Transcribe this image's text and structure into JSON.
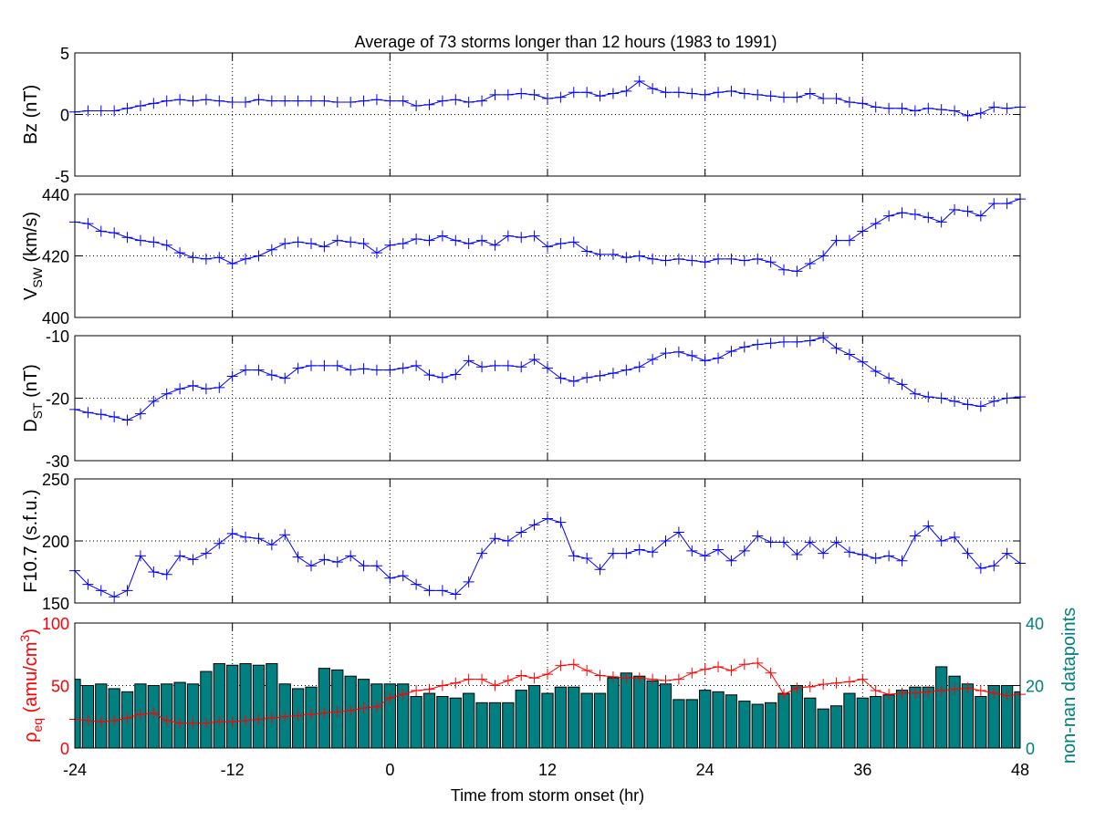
{
  "chart_data": [
    {
      "type": "line",
      "title": "Average of 73 storms longer than 12 hours (1983 to 1991)",
      "ylabel_parts": [
        {
          "text": "Bz (nT)"
        }
      ],
      "x": [
        -24,
        -23,
        -22,
        -21,
        -20,
        -19,
        -18,
        -17,
        -16,
        -15,
        -14,
        -13,
        -12,
        -11,
        -10,
        -9,
        -8,
        -7,
        -6,
        -5,
        -4,
        -3,
        -2,
        -1,
        0,
        1,
        2,
        3,
        4,
        5,
        6,
        7,
        8,
        9,
        10,
        11,
        12,
        13,
        14,
        15,
        16,
        17,
        18,
        19,
        20,
        21,
        22,
        23,
        24,
        25,
        26,
        27,
        28,
        29,
        30,
        31,
        32,
        33,
        34,
        35,
        36,
        37,
        38,
        39,
        40,
        41,
        42,
        43,
        44,
        45,
        46,
        47,
        48
      ],
      "series": [
        {
          "color": "#0000ff",
          "values": [
            0.2,
            0.3,
            0.3,
            0.3,
            0.5,
            0.7,
            0.9,
            1.1,
            1.2,
            1.1,
            1.2,
            1.1,
            1.0,
            1.0,
            1.2,
            1.1,
            1.1,
            1.1,
            1.1,
            1.1,
            1.0,
            1.0,
            1.1,
            1.2,
            1.1,
            1.1,
            0.7,
            0.8,
            1.1,
            1.2,
            1.0,
            1.1,
            1.6,
            1.6,
            1.7,
            1.6,
            1.3,
            1.4,
            1.8,
            1.8,
            1.5,
            1.7,
            1.9,
            2.7,
            2.1,
            1.8,
            1.8,
            1.7,
            1.6,
            1.8,
            1.9,
            1.7,
            1.6,
            1.5,
            1.4,
            1.4,
            1.7,
            1.3,
            1.3,
            1.0,
            0.9,
            0.6,
            0.5,
            0.5,
            0.3,
            0.5,
            0.4,
            0.3,
            -0.1,
            0.1,
            0.6,
            0.5,
            0.6
          ]
        }
      ],
      "xlim": [
        -24,
        48
      ],
      "xticks": [
        -24,
        -12,
        0,
        12,
        24,
        36,
        48
      ],
      "show_xtick_labels": false,
      "ylim": [
        -5,
        5
      ],
      "yticks": [
        -5,
        0,
        5
      ],
      "grid": true
    },
    {
      "type": "line",
      "ylabel_parts": [
        {
          "text": "V"
        },
        {
          "text": "SW",
          "sub": true
        },
        {
          "text": " (km/s)"
        }
      ],
      "x": [
        -24,
        -23,
        -22,
        -21,
        -20,
        -19,
        -18,
        -17,
        -16,
        -15,
        -14,
        -13,
        -12,
        -11,
        -10,
        -9,
        -8,
        -7,
        -6,
        -5,
        -4,
        -3,
        -2,
        -1,
        0,
        1,
        2,
        3,
        4,
        5,
        6,
        7,
        8,
        9,
        10,
        11,
        12,
        13,
        14,
        15,
        16,
        17,
        18,
        19,
        20,
        21,
        22,
        23,
        24,
        25,
        26,
        27,
        28,
        29,
        30,
        31,
        32,
        33,
        34,
        35,
        36,
        37,
        38,
        39,
        40,
        41,
        42,
        43,
        44,
        45,
        46,
        47,
        48
      ],
      "series": [
        {
          "color": "#0000ff",
          "values": [
            431,
            430.5,
            428,
            427.5,
            426,
            425,
            424.5,
            423.5,
            421,
            419.5,
            419,
            419.5,
            417.5,
            419,
            420,
            422,
            424,
            424.5,
            424,
            423,
            425,
            424.5,
            424,
            421,
            423.5,
            424,
            425.5,
            425,
            426.5,
            425,
            424,
            425,
            423.5,
            426.5,
            426,
            426.5,
            423,
            424,
            424.5,
            421.5,
            420.5,
            420.5,
            419.5,
            420,
            419,
            418.5,
            419,
            418.5,
            418,
            419,
            419,
            418.5,
            419,
            418,
            415.5,
            415,
            417.5,
            420,
            425,
            425,
            428,
            430.5,
            433,
            434,
            433.5,
            432.5,
            431,
            435,
            434.5,
            433,
            437,
            437,
            438.5
          ]
        }
      ],
      "xlim": [
        -24,
        48
      ],
      "xticks": [
        -24,
        -12,
        0,
        12,
        24,
        36,
        48
      ],
      "show_xtick_labels": false,
      "ylim": [
        400,
        440
      ],
      "yticks": [
        400,
        420,
        440
      ],
      "grid": true
    },
    {
      "type": "line",
      "ylabel_parts": [
        {
          "text": "D"
        },
        {
          "text": "ST",
          "sub": true
        },
        {
          "text": " (nT)"
        }
      ],
      "x": [
        -24,
        -23,
        -22,
        -21,
        -20,
        -19,
        -18,
        -17,
        -16,
        -15,
        -14,
        -13,
        -12,
        -11,
        -10,
        -9,
        -8,
        -7,
        -6,
        -5,
        -4,
        -3,
        -2,
        -1,
        0,
        1,
        2,
        3,
        4,
        5,
        6,
        7,
        8,
        9,
        10,
        11,
        12,
        13,
        14,
        15,
        16,
        17,
        18,
        19,
        20,
        21,
        22,
        23,
        24,
        25,
        26,
        27,
        28,
        29,
        30,
        31,
        32,
        33,
        34,
        35,
        36,
        37,
        38,
        39,
        40,
        41,
        42,
        43,
        44,
        45,
        46,
        47,
        48
      ],
      "series": [
        {
          "color": "#0000ff",
          "values": [
            -21.8,
            -22.3,
            -22.6,
            -23.0,
            -23.5,
            -22.5,
            -20.5,
            -19.3,
            -18.5,
            -18.0,
            -18.5,
            -18.3,
            -16.5,
            -15.5,
            -15.5,
            -16.3,
            -16.8,
            -15.2,
            -14.8,
            -14.8,
            -14.8,
            -15.5,
            -15.3,
            -15.5,
            -15.5,
            -15.2,
            -14.8,
            -16.3,
            -16.7,
            -16.2,
            -14.0,
            -15.0,
            -14.8,
            -14.8,
            -15.0,
            -13.8,
            -15.2,
            -16.8,
            -17.3,
            -16.7,
            -16.4,
            -16.0,
            -15.5,
            -15.0,
            -13.8,
            -12.8,
            -12.6,
            -13.2,
            -14.0,
            -13.6,
            -12.5,
            -11.8,
            -11.4,
            -11.2,
            -11.0,
            -11.0,
            -10.8,
            -10.3,
            -12.0,
            -13.0,
            -14.2,
            -15.7,
            -16.8,
            -17.8,
            -19.3,
            -19.8,
            -20.0,
            -20.5,
            -21.0,
            -21.3,
            -20.5,
            -20.0,
            -19.8
          ]
        }
      ],
      "xlim": [
        -24,
        48
      ],
      "xticks": [
        -24,
        -12,
        0,
        12,
        24,
        36,
        48
      ],
      "show_xtick_labels": false,
      "ylim": [
        -30,
        -10
      ],
      "yticks": [
        -30,
        -20,
        -10
      ],
      "grid": true
    },
    {
      "type": "line",
      "ylabel_parts": [
        {
          "text": "F10.7 (s.f.u.)"
        }
      ],
      "x": [
        -24,
        -23,
        -22,
        -21,
        -20,
        -19,
        -18,
        -17,
        -16,
        -15,
        -14,
        -13,
        -12,
        -11,
        -10,
        -9,
        -8,
        -7,
        -6,
        -5,
        -4,
        -3,
        -2,
        -1,
        0,
        1,
        2,
        3,
        4,
        5,
        6,
        7,
        8,
        9,
        10,
        11,
        12,
        13,
        14,
        15,
        16,
        17,
        18,
        19,
        20,
        21,
        22,
        23,
        24,
        25,
        26,
        27,
        28,
        29,
        30,
        31,
        32,
        33,
        34,
        35,
        36,
        37,
        38,
        39,
        40,
        41,
        42,
        43,
        44,
        45,
        46,
        47,
        48
      ],
      "series": [
        {
          "color": "#0000ff",
          "values": [
            176,
            165,
            160,
            155,
            160,
            188,
            175,
            173,
            188,
            185,
            190,
            198,
            206,
            203,
            202,
            197,
            205,
            187,
            180,
            185,
            183,
            188,
            180,
            180,
            170,
            172,
            165,
            160,
            160,
            157,
            167,
            190,
            202,
            200,
            207,
            213,
            218,
            215,
            188,
            186,
            177,
            190,
            190,
            193,
            191,
            200,
            207,
            192,
            188,
            193,
            184,
            192,
            204,
            199,
            199,
            189,
            199,
            190,
            199,
            191,
            189,
            186,
            188,
            184,
            204,
            212,
            200,
            203,
            190,
            178,
            180,
            190,
            182
          ]
        }
      ],
      "xlim": [
        -24,
        48
      ],
      "xticks": [
        -24,
        -12,
        0,
        12,
        24,
        36,
        48
      ],
      "show_xtick_labels": false,
      "ylim": [
        150,
        250
      ],
      "yticks": [
        150,
        200,
        250
      ],
      "grid": true
    },
    {
      "type": "line",
      "xlabel": "Time from storm onset (hr)",
      "ylabel_parts": [
        {
          "text": "ρ"
        },
        {
          "text": "eq",
          "sub": true
        },
        {
          "text": " (amu/cm"
        },
        {
          "text": "3",
          "sup": true
        },
        {
          "text": ")"
        }
      ],
      "ylabel_color": "#ff0000",
      "y2label": "non-nan datapoints",
      "y2label_color": "#008080",
      "x": [
        -24,
        -23,
        -22,
        -21,
        -20,
        -19,
        -18,
        -17,
        -16,
        -15,
        -14,
        -13,
        -12,
        -11,
        -10,
        -9,
        -8,
        -7,
        -6,
        -5,
        -4,
        -3,
        -2,
        -1,
        0,
        1,
        2,
        3,
        4,
        5,
        6,
        7,
        8,
        9,
        10,
        11,
        12,
        13,
        14,
        15,
        16,
        17,
        18,
        19,
        20,
        21,
        22,
        23,
        24,
        25,
        26,
        27,
        28,
        29,
        30,
        31,
        32,
        33,
        34,
        35,
        36,
        37,
        38,
        39,
        40,
        41,
        42,
        43,
        44,
        45,
        46,
        47,
        48
      ],
      "series": [
        {
          "type": "bar",
          "axis": "y2",
          "color": "#008080",
          "values": [
            22,
            20,
            20.5,
            19,
            18,
            20.5,
            20,
            20.5,
            21,
            20.5,
            24.5,
            27,
            26.5,
            27,
            26.5,
            27,
            20.5,
            19,
            19.5,
            25.5,
            25,
            23,
            22,
            20.5,
            20.5,
            20.5,
            16.5,
            17.5,
            16.5,
            16,
            17.5,
            14.5,
            14.5,
            14.5,
            18.5,
            20,
            17.5,
            19.5,
            19.5,
            17.5,
            17.5,
            22.5,
            24,
            23,
            21.5,
            20.5,
            15.5,
            15.5,
            18.5,
            18,
            17,
            15,
            14,
            14.5,
            17.5,
            20,
            16,
            12.5,
            13.5,
            17.5,
            16,
            16.5,
            17,
            18.5,
            19.5,
            19.5,
            26,
            23,
            20.5,
            16.5,
            20,
            20,
            18
          ]
        },
        {
          "color": "#ff0000",
          "values": [
            23,
            22,
            21,
            22,
            24,
            27,
            28,
            22,
            20,
            20,
            20,
            21,
            21,
            22,
            23,
            24,
            25,
            26,
            27,
            28,
            29,
            30,
            32,
            33,
            40,
            43,
            46,
            47,
            50,
            52,
            55,
            55,
            50,
            54,
            58,
            56,
            59,
            66,
            67,
            62,
            58,
            57,
            56,
            56,
            55,
            54,
            55,
            60,
            63,
            65,
            62,
            67,
            68,
            60,
            43,
            48,
            49,
            51,
            52,
            53,
            55,
            46,
            43,
            44,
            44,
            45,
            46,
            47,
            48,
            46,
            44,
            42,
            43
          ]
        }
      ],
      "xlim": [
        -24,
        48
      ],
      "xticks": [
        -24,
        -12,
        0,
        12,
        24,
        36,
        48
      ],
      "show_xtick_labels": true,
      "ylim": [
        0,
        100
      ],
      "yticks": [
        0,
        50,
        100
      ],
      "y2lim": [
        0,
        40
      ],
      "y2ticks": [
        0,
        20,
        40
      ],
      "grid": true
    }
  ]
}
